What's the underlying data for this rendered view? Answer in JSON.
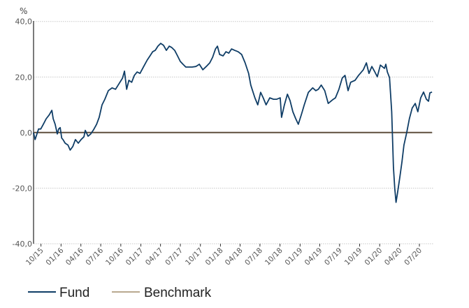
{
  "chart_data": {
    "type": "line",
    "title": "",
    "ylabel": "%",
    "xlabel": "",
    "ylim": [
      -40,
      40
    ],
    "xlim": [
      "2015-08-28",
      "2020-09-03"
    ],
    "grid": true,
    "legend_position": "bottom-left",
    "yticks": [
      "40,0",
      "20,0",
      "0,0",
      "-20,0",
      "-40,0"
    ],
    "ytick_values": [
      40,
      20,
      0,
      -20,
      -40
    ],
    "xticks": [
      "10/15",
      "01/16",
      "04/16",
      "07/16",
      "10/16",
      "01/17",
      "04/17",
      "07/17",
      "10/17",
      "01/18",
      "04/18",
      "07/18",
      "10/18",
      "01/19",
      "04/19",
      "07/19",
      "10/19",
      "01/20",
      "04/20",
      "07/20"
    ],
    "xtick_dates": [
      "2015-10-01",
      "2016-01-01",
      "2016-04-01",
      "2016-07-01",
      "2016-10-01",
      "2017-01-01",
      "2017-04-01",
      "2017-07-01",
      "2017-10-01",
      "2018-01-01",
      "2018-04-01",
      "2018-07-01",
      "2018-10-01",
      "2019-01-01",
      "2019-04-01",
      "2019-07-01",
      "2019-10-01",
      "2020-01-01",
      "2020-04-01",
      "2020-07-01"
    ],
    "series": [
      {
        "name": "Fund",
        "color": "#0f3d66",
        "x": [
          "2015-08-28",
          "2015-09-04",
          "2015-09-20",
          "2015-09-30",
          "2015-10-12",
          "2015-10-25",
          "2015-11-07",
          "2015-11-20",
          "2015-11-26",
          "2015-12-05",
          "2015-12-15",
          "2015-12-21",
          "2015-12-28",
          "2016-01-04",
          "2016-01-10",
          "2016-01-20",
          "2016-02-02",
          "2016-02-12",
          "2016-02-24",
          "2016-03-07",
          "2016-03-20",
          "2016-04-02",
          "2016-04-15",
          "2016-04-21",
          "2016-05-04",
          "2016-05-16",
          "2016-05-29",
          "2016-06-12",
          "2016-06-24",
          "2016-07-07",
          "2016-07-20",
          "2016-08-05",
          "2016-08-22",
          "2016-09-07",
          "2016-09-23",
          "2016-10-09",
          "2016-10-18",
          "2016-10-28",
          "2016-11-07",
          "2016-11-20",
          "2016-12-02",
          "2016-12-15",
          "2016-12-28",
          "2017-01-14",
          "2017-01-30",
          "2017-02-12",
          "2017-02-24",
          "2017-03-08",
          "2017-03-20",
          "2017-04-02",
          "2017-04-15",
          "2017-04-28",
          "2017-05-11",
          "2017-05-23",
          "2017-06-05",
          "2017-06-18",
          "2017-07-01",
          "2017-07-13",
          "2017-07-26",
          "2017-08-08",
          "2017-08-24",
          "2017-09-10",
          "2017-09-26",
          "2017-10-12",
          "2017-10-28",
          "2017-11-13",
          "2017-11-26",
          "2017-12-09",
          "2017-12-18",
          "2017-12-28",
          "2018-01-13",
          "2018-01-26",
          "2018-02-08",
          "2018-02-21",
          "2018-03-07",
          "2018-03-23",
          "2018-04-08",
          "2018-04-24",
          "2018-05-10",
          "2018-05-20",
          "2018-05-26",
          "2018-06-08",
          "2018-06-21",
          "2018-07-04",
          "2018-07-16",
          "2018-07-29",
          "2018-08-15",
          "2018-09-01",
          "2018-09-16",
          "2018-10-02",
          "2018-10-08",
          "2018-10-21",
          "2018-11-04",
          "2018-11-16",
          "2018-11-29",
          "2018-12-12",
          "2018-12-24",
          "2019-01-07",
          "2019-01-20",
          "2019-02-08",
          "2019-02-28",
          "2019-03-14",
          "2019-03-26",
          "2019-04-08",
          "2019-04-24",
          "2019-05-10",
          "2019-05-30",
          "2019-06-12",
          "2019-06-28",
          "2019-07-13",
          "2019-07-26",
          "2019-08-09",
          "2019-08-21",
          "2019-09-10",
          "2019-09-26",
          "2019-10-18",
          "2019-11-01",
          "2019-11-13",
          "2019-11-26",
          "2019-12-08",
          "2019-12-21",
          "2020-01-04",
          "2020-01-23",
          "2020-01-29",
          "2020-02-05",
          "2020-02-15",
          "2020-02-25",
          "2020-03-04",
          "2020-03-10",
          "2020-03-16",
          "2020-03-22",
          "2020-04-02",
          "2020-04-12",
          "2020-04-21",
          "2020-05-04",
          "2020-05-16",
          "2020-05-29",
          "2020-06-12",
          "2020-06-24",
          "2020-07-07",
          "2020-07-20",
          "2020-08-02",
          "2020-08-12",
          "2020-08-18",
          "2020-08-28"
        ],
        "values": [
          0,
          -2.5,
          1.3,
          1.3,
          3.0,
          5.0,
          6.3,
          8.0,
          5.0,
          3.0,
          -0.5,
          1.3,
          1.8,
          -2.0,
          -2.5,
          -3.8,
          -4.5,
          -6.3,
          -5.0,
          -2.5,
          -3.8,
          -2.5,
          -1.5,
          0.8,
          -1.3,
          -0.5,
          1.0,
          3.0,
          5.5,
          10.0,
          12.0,
          15.1,
          16.1,
          15.6,
          17.6,
          19.6,
          22.1,
          15.6,
          18.8,
          18.1,
          20.6,
          21.8,
          21.3,
          23.8,
          26.1,
          27.6,
          29.1,
          29.6,
          31.1,
          32.1,
          31.4,
          29.6,
          31.1,
          30.6,
          29.6,
          27.6,
          25.6,
          24.6,
          23.6,
          23.6,
          23.6,
          23.8,
          24.6,
          22.6,
          23.8,
          25.1,
          27.1,
          30.1,
          31.1,
          28.1,
          27.6,
          29.1,
          28.6,
          30.1,
          29.6,
          29.1,
          28.1,
          25.1,
          21.3,
          17.1,
          15.6,
          12.5,
          10.0,
          14.5,
          12.5,
          10.0,
          12.5,
          12.0,
          12.0,
          12.5,
          5.5,
          10.0,
          13.8,
          11.5,
          7.5,
          5.0,
          3.0,
          6.5,
          10.0,
          14.5,
          16.1,
          15.1,
          15.6,
          17.1,
          15.1,
          10.5,
          11.8,
          12.5,
          15.6,
          19.6,
          20.6,
          15.1,
          18.1,
          18.8,
          20.6,
          22.6,
          25.1,
          21.3,
          23.8,
          22.1,
          20.1,
          24.3,
          23.1,
          24.6,
          21.8,
          19.8,
          7.5,
          -12.5,
          -20.1,
          -25.1,
          -22.1,
          -16.3,
          -10.5,
          -4.5,
          0,
          5.0,
          8.8,
          10.5,
          7.5,
          12.5,
          14.6,
          12.0,
          11.3,
          14.3,
          14.6
        ]
      },
      {
        "name": "Benchmark",
        "color": "#5e4e3c",
        "legend_color": "#b9a98f",
        "x": [
          "2015-08-28",
          "2020-08-28"
        ],
        "values": [
          0,
          0
        ]
      }
    ]
  },
  "legend": {
    "items": [
      {
        "label": "Fund",
        "color": "#0f3d66"
      },
      {
        "label": "Benchmark",
        "color": "#b9a98f"
      }
    ]
  }
}
